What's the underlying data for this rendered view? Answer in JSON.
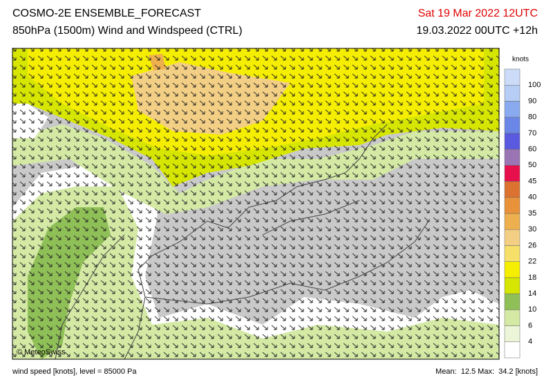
{
  "header": {
    "title": "COSMO-2E ENSEMBLE_FORECAST",
    "subtitle": "850hPa (1500m) Wind and Windspeed (CTRL)",
    "valid_time": "Sat 19 Mar 2022 12UTC",
    "run_time": "19.03.2022 00UTC +12h"
  },
  "colorbar": {
    "unit": "knots",
    "levels": [
      4,
      6,
      10,
      14,
      18,
      22,
      26,
      30,
      35,
      40,
      45,
      50,
      60,
      70,
      80,
      90,
      100
    ],
    "colors": [
      "#ffffff",
      "#ecf5d8",
      "#d3e9a4",
      "#8fbf57",
      "#d6e600",
      "#f6ee00",
      "#f7e06a",
      "#f2cf84",
      "#eeb04e",
      "#e8923a",
      "#dc7230",
      "#e8104c",
      "#9b74b4",
      "#5a5ae0",
      "#6a86e6",
      "#8aaaf0",
      "#b6cdf6",
      "#ccdcf8"
    ]
  },
  "map": {
    "credit": "© MeteoSwiss"
  },
  "footer": {
    "left": "wind speed [knots], level = 85000 Pa",
    "right": "Mean:  12.5 Max:  34.2 [knots]"
  }
}
